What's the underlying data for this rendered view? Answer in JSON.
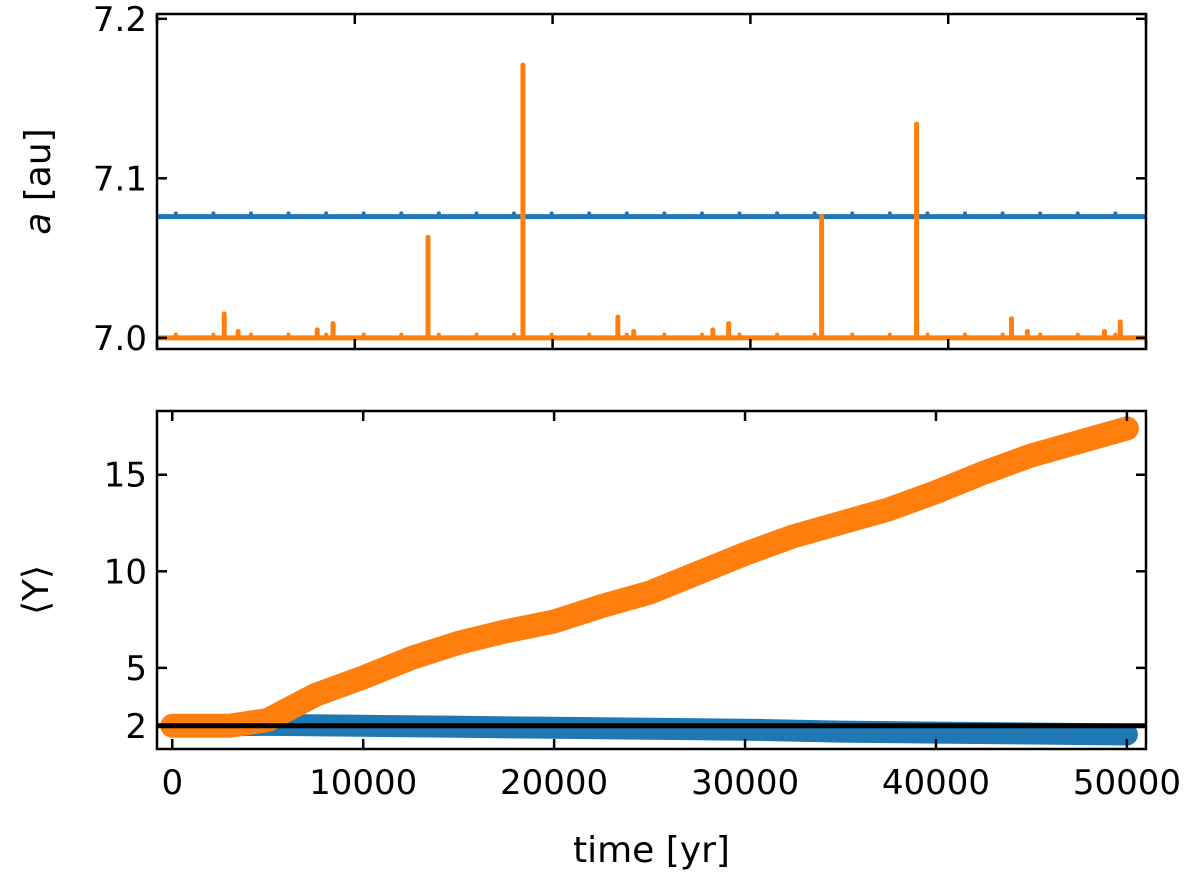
{
  "chart_data": [
    {
      "type": "line",
      "panel": "top",
      "ylabel_italic": "a",
      "ylabel_unit": " [au]",
      "xlim": [
        0,
        50000
      ],
      "ylim": [
        6.993,
        7.203
      ],
      "yticks": [
        7.0,
        7.1,
        7.2
      ],
      "ytick_labels": [
        "7.0",
        "7.1",
        "7.2"
      ],
      "xticks": [
        0,
        10000,
        20000,
        30000,
        40000,
        50000
      ],
      "show_xtick_labels": false,
      "grid": false,
      "legend": "none",
      "series": [
        {
          "color": "#1f77b4",
          "baseline": 7.076,
          "x_range": [
            0,
            50000
          ],
          "bump_height": 0.002,
          "bump_spacing": 1900,
          "spikes": []
        },
        {
          "color": "#ff7f0e",
          "baseline": 7.0,
          "x_range": [
            0,
            50000
          ],
          "bump_height": 0.002,
          "bump_spacing": 1900,
          "spikes": [
            {
              "x": 3400,
              "y": 7.015
            },
            {
              "x": 4100,
              "y": 7.004
            },
            {
              "x": 8100,
              "y": 7.005
            },
            {
              "x": 8900,
              "y": 7.009
            },
            {
              "x": 13700,
              "y": 7.063
            },
            {
              "x": 18500,
              "y": 7.171
            },
            {
              "x": 23300,
              "y": 7.013
            },
            {
              "x": 24100,
              "y": 7.004
            },
            {
              "x": 28100,
              "y": 7.005
            },
            {
              "x": 28900,
              "y": 7.009
            },
            {
              "x": 33600,
              "y": 7.076
            },
            {
              "x": 38400,
              "y": 7.134
            },
            {
              "x": 43200,
              "y": 7.012
            },
            {
              "x": 44000,
              "y": 7.004
            },
            {
              "x": 47900,
              "y": 7.004
            },
            {
              "x": 48700,
              "y": 7.01
            }
          ]
        }
      ]
    },
    {
      "type": "line",
      "panel": "bottom",
      "ylabel": "⟨Y⟩",
      "xlabel": "time [yr]",
      "xlim": [
        -800,
        51000
      ],
      "ylim": [
        0.8,
        18.3
      ],
      "yticks": [
        2,
        5,
        10,
        15
      ],
      "ytick_labels": [
        "2",
        "5",
        "10",
        "15"
      ],
      "xticks": [
        0,
        10000,
        20000,
        30000,
        40000,
        50000
      ],
      "xtick_labels": [
        "0",
        "10000",
        "20000",
        "30000",
        "40000",
        "50000"
      ],
      "grid": false,
      "legend": "none",
      "series": [
        {
          "color": "#1f77b4",
          "x": [
            0,
            5000,
            10000,
            15000,
            20000,
            25000,
            30000,
            35000,
            40000,
            45000,
            50000
          ],
          "y": [
            2.0,
            2.05,
            2.0,
            1.95,
            1.9,
            1.85,
            1.8,
            1.7,
            1.65,
            1.6,
            1.55
          ]
        },
        {
          "color": "#ff7f0e",
          "x": [
            0,
            3000,
            5000,
            7500,
            10000,
            12500,
            15000,
            17500,
            20000,
            22500,
            25000,
            27500,
            30000,
            32500,
            35000,
            37500,
            40000,
            42500,
            45000,
            47500,
            50000
          ],
          "y": [
            2.0,
            2.0,
            2.3,
            3.6,
            4.5,
            5.5,
            6.3,
            6.9,
            7.4,
            8.2,
            8.9,
            9.9,
            10.9,
            11.8,
            12.5,
            13.2,
            14.1,
            15.1,
            16.0,
            16.7,
            17.4
          ]
        },
        {
          "color": "#000000",
          "x": [
            -800,
            51000
          ],
          "y": [
            2.0,
            2.0
          ]
        }
      ]
    }
  ]
}
